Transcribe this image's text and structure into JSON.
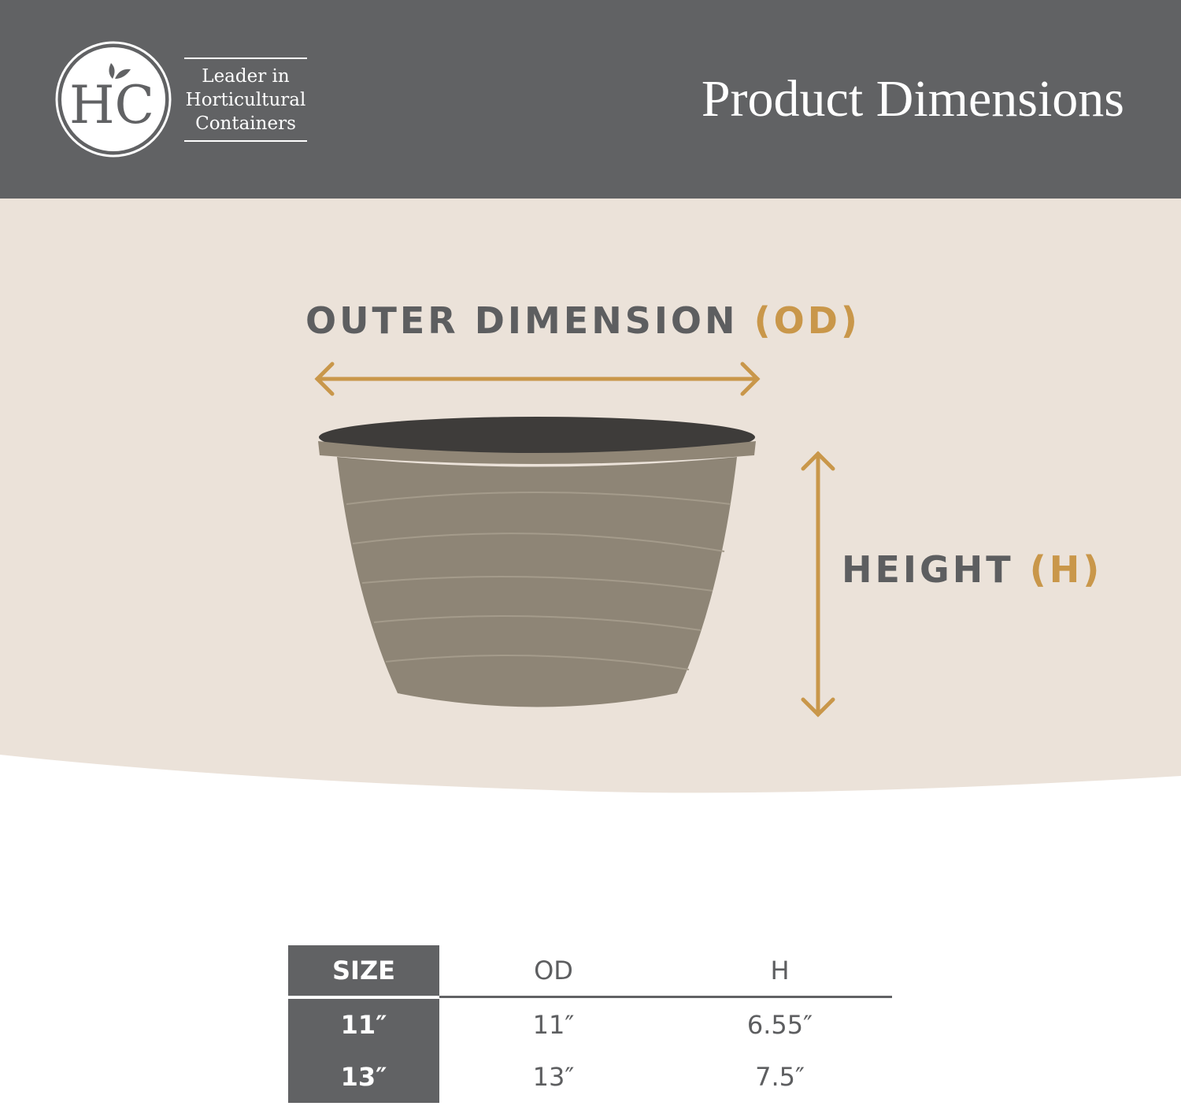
{
  "colors": {
    "header": "#616264",
    "beige": "#ebe2d9",
    "accent": "#c9974a",
    "text": "#5d5e60"
  },
  "logo": {
    "monogram": "HC",
    "tagline": [
      "Leader in",
      "Horticultural",
      "Containers"
    ]
  },
  "header": {
    "title": "Product Dimensions"
  },
  "diagram": {
    "od_label": "OUTER DIMENSION",
    "od_abbr": "(OD)",
    "h_label": "HEIGHT",
    "h_abbr": "(H)"
  },
  "table": {
    "headers": [
      "SIZE",
      "OD",
      "H"
    ],
    "rows": [
      [
        "11″",
        "11″",
        "6.55″"
      ],
      [
        "13″",
        "13″",
        "7.5″"
      ]
    ]
  }
}
